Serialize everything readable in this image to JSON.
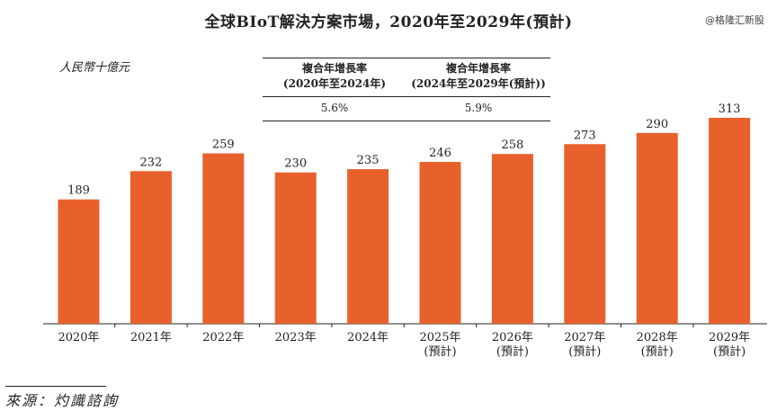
{
  "title": "全球BIoT解決方案市場，2020年至2029年(預計)",
  "watermark": "@格隆汇新股",
  "unit": "人民幣十億元",
  "cagr": {
    "headers": [
      "複合年增長率\n(2020年至2024年)",
      "複合年增長率\n(2024年至2029年(預計))"
    ],
    "values": [
      "5.6%",
      "5.9%"
    ]
  },
  "source": "來源：灼識諮詢",
  "chart_data": {
    "type": "bar",
    "categories": [
      "2020年",
      "2021年",
      "2022年",
      "2023年",
      "2024年",
      "2025年\n(預計)",
      "2026年\n(預計)",
      "2027年\n(預計)",
      "2028年\n(預計)",
      "2029年\n(預計)"
    ],
    "values": [
      189,
      232,
      259,
      230,
      235,
      246,
      258,
      273,
      290,
      313
    ],
    "ylim": [
      0,
      313
    ],
    "color": "#E8612C",
    "grid": false
  }
}
